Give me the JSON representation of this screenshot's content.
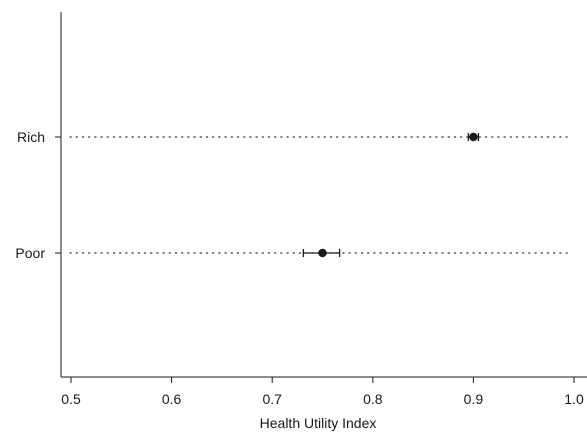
{
  "chart_data": {
    "type": "scatter",
    "title": "",
    "xlabel": "Health Utility Index",
    "ylabel": "",
    "xlim": [
      0.5,
      1.0
    ],
    "x_ticks": [
      "0.5",
      "0.6",
      "0.7",
      "0.8",
      "0.9",
      "1.0"
    ],
    "categories": [
      "Rich",
      "Poor"
    ],
    "series": [
      {
        "points": [
          {
            "category": "Rich",
            "x": 0.9,
            "ci_low": 0.895,
            "ci_high": 0.905
          },
          {
            "category": "Poor",
            "x": 0.75,
            "ci_low": 0.731,
            "ci_high": 0.767
          }
        ]
      }
    ],
    "grid": false,
    "reference_lines": "dotted",
    "legend": "none",
    "colors": {
      "marker": "#1a1a1a",
      "axis": "#1a1a1a",
      "reference": "#333333"
    }
  }
}
